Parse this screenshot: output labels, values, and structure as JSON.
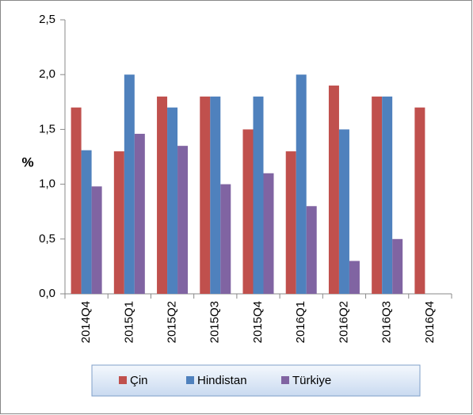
{
  "chart_data": {
    "type": "bar",
    "categories": [
      "2014Q4",
      "2015Q1",
      "2015Q2",
      "2015Q3",
      "2015Q4",
      "2016Q1",
      "2016Q2",
      "2016Q3",
      "2016Q4"
    ],
    "series": [
      {
        "name": "Çin",
        "color": "#c0504d",
        "values": [
          1.7,
          1.3,
          1.8,
          1.8,
          1.5,
          1.3,
          1.9,
          1.8,
          1.7
        ]
      },
      {
        "name": "Hindistan",
        "color": "#4f81bd",
        "values": [
          1.31,
          2.0,
          1.7,
          1.8,
          1.8,
          2.0,
          1.5,
          1.8,
          null
        ]
      },
      {
        "name": "Türkiye",
        "color": "#8064a2",
        "values": [
          0.98,
          1.46,
          1.35,
          1.0,
          1.1,
          0.8,
          0.3,
          0.5,
          null
        ]
      }
    ],
    "y_label": "%",
    "ylim": [
      0,
      2.5
    ],
    "yticks": [
      {
        "value": 0,
        "label": "0,0"
      },
      {
        "value": 0.5,
        "label": "0,5"
      },
      {
        "value": 1,
        "label": "1,0"
      },
      {
        "value": 1.5,
        "label": "1,5"
      },
      {
        "value": 2,
        "label": "2,0"
      },
      {
        "value": 2.5,
        "label": "2,5"
      }
    ],
    "legend": "bottom"
  }
}
